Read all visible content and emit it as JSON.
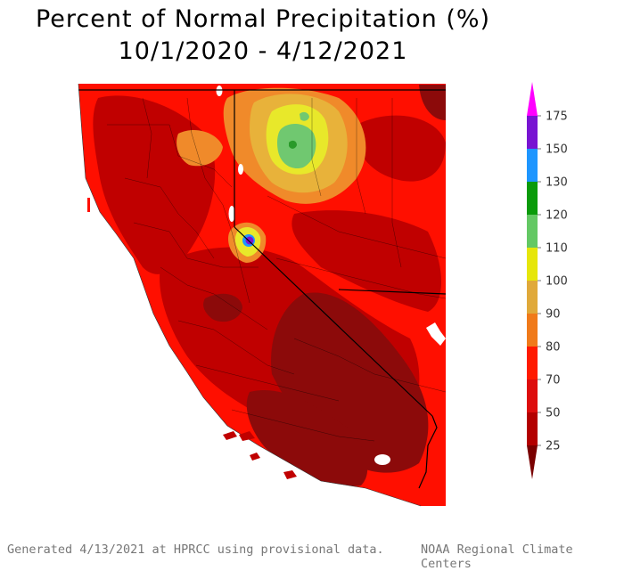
{
  "title": {
    "line1": "Percent of Normal Precipitation (%)",
    "line2": "10/1/2020 - 4/12/2021"
  },
  "footer": {
    "left": "Generated 4/13/2021 at HPRCC using provisional data.",
    "right": "NOAA Regional Climate Centers"
  },
  "colorbar": {
    "levels": [
      {
        "label": "25",
        "color": "#b30000"
      },
      {
        "label": "50",
        "color": "#dd0d0d"
      },
      {
        "label": "70",
        "color": "#ff1a00"
      },
      {
        "label": "80",
        "color": "#f07a1a"
      },
      {
        "label": "90",
        "color": "#e0a93a"
      },
      {
        "label": "100",
        "color": "#e6e60a"
      },
      {
        "label": "110",
        "color": "#64c864"
      },
      {
        "label": "120",
        "color": "#0a9b0a"
      },
      {
        "label": "130",
        "color": "#1e96ff"
      },
      {
        "label": "150",
        "color": "#7814d2"
      },
      {
        "label": "175",
        "color": "#c800c8"
      }
    ],
    "bottom_color": "#7a0000",
    "top_color": "#ff00ff"
  },
  "map_colors": {
    "background": "#ff0f00",
    "very_dry": "#8c0a0a",
    "dry": "#c00000",
    "normal_low": "#f08a2a",
    "normal": "#e8b23a",
    "wet": "#e8e82a",
    "wetter": "#70c870",
    "wettest": "#2a9a2a",
    "lake": "#ffffff",
    "ocean": "#ffffff"
  }
}
